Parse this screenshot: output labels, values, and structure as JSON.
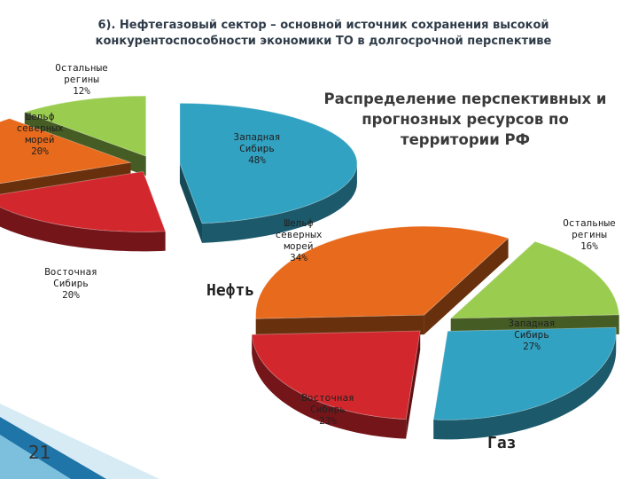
{
  "slide": {
    "title": "6). Нефтегазовый сектор – основной источник сохранения высокой конкурентоспособности экономики ТО в долгосрочной перспективе",
    "side_title": "Распределение перспективных и прогнозных ресурсов по территории РФ",
    "page_number": "21"
  },
  "colors": {
    "green": "#9ACD4F",
    "blue": "#31A2C2",
    "red": "#D2272D",
    "orange": "#E86A1C"
  },
  "chart_data": [
    {
      "type": "pie",
      "title": "Нефть",
      "slices": [
        {
          "label": [
            "Западная",
            "Сибирь",
            "48%"
          ],
          "value": 48,
          "color": "#31A2C2"
        },
        {
          "label": [
            "Восточная",
            "Сибирь",
            "20%"
          ],
          "value": 20,
          "color": "#D2272D"
        },
        {
          "label": [
            "Шельф",
            "северных",
            "морей",
            "20%"
          ],
          "value": 20,
          "color": "#E86A1C"
        },
        {
          "label": [
            "Остальные",
            "регины",
            "12%"
          ],
          "value": 12,
          "color": "#9ACD4F"
        }
      ]
    },
    {
      "type": "pie",
      "title": "Газ",
      "slices": [
        {
          "label": [
            "Остальные",
            "регины",
            "16%"
          ],
          "value": 16,
          "color": "#9ACD4F"
        },
        {
          "label": [
            "Западная",
            "Сибирь",
            "27%"
          ],
          "value": 27,
          "color": "#31A2C2"
        },
        {
          "label": [
            "Восточная",
            "Сибирь",
            "23%"
          ],
          "value": 23,
          "color": "#D2272D"
        },
        {
          "label": [
            "Шельф",
            "северных",
            "морей",
            "34%"
          ],
          "value": 34,
          "color": "#E86A1C"
        }
      ]
    }
  ]
}
